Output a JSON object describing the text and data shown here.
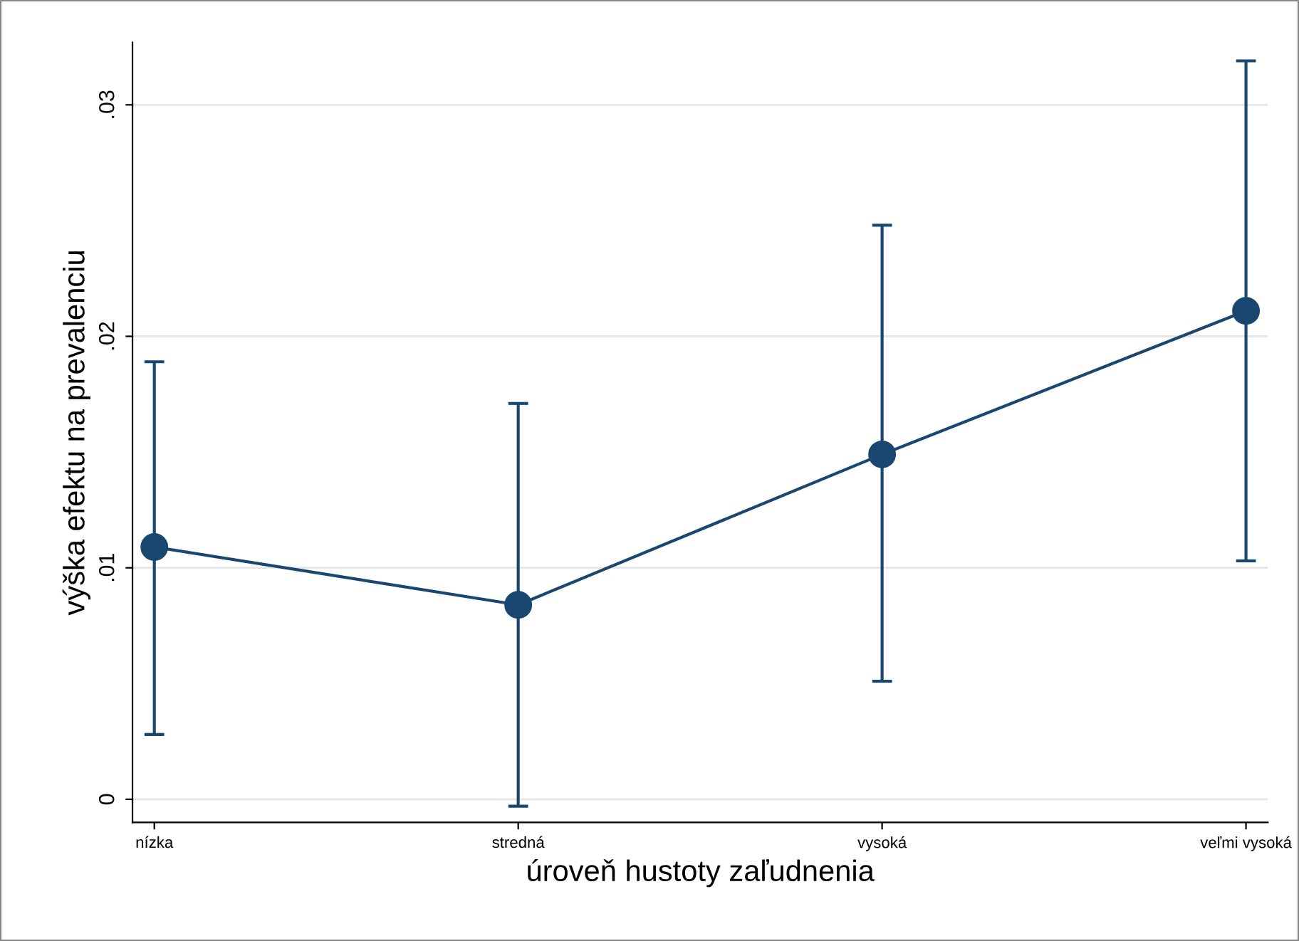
{
  "chart_data": {
    "type": "line",
    "xlabel": "úroveň hustoty zaľudnenia",
    "ylabel": "výška efektu na prevalenciu",
    "categories": [
      "nízka",
      "stredná",
      "vysoká",
      "veľmi vysoká"
    ],
    "series": [
      {
        "color": "#1a476f",
        "values": [
          0.0109,
          0.0084,
          0.0149,
          0.0211
        ],
        "errors": [
          [
            0.0028,
            0.0189
          ],
          [
            -0.0003,
            0.0171
          ],
          [
            0.0051,
            0.0248
          ],
          [
            0.0103,
            0.0319
          ]
        ]
      }
    ],
    "ylim": [
      -0.001,
      0.0327
    ],
    "yticks": [
      {
        "value": 0,
        "label": "0"
      },
      {
        "value": 0.01,
        "label": ".01"
      },
      {
        "value": 0.02,
        "label": ".02"
      },
      {
        "value": 0.03,
        "label": ".03"
      }
    ],
    "grid": "y",
    "marker": "circle",
    "line_style": "solid",
    "legend": false
  }
}
